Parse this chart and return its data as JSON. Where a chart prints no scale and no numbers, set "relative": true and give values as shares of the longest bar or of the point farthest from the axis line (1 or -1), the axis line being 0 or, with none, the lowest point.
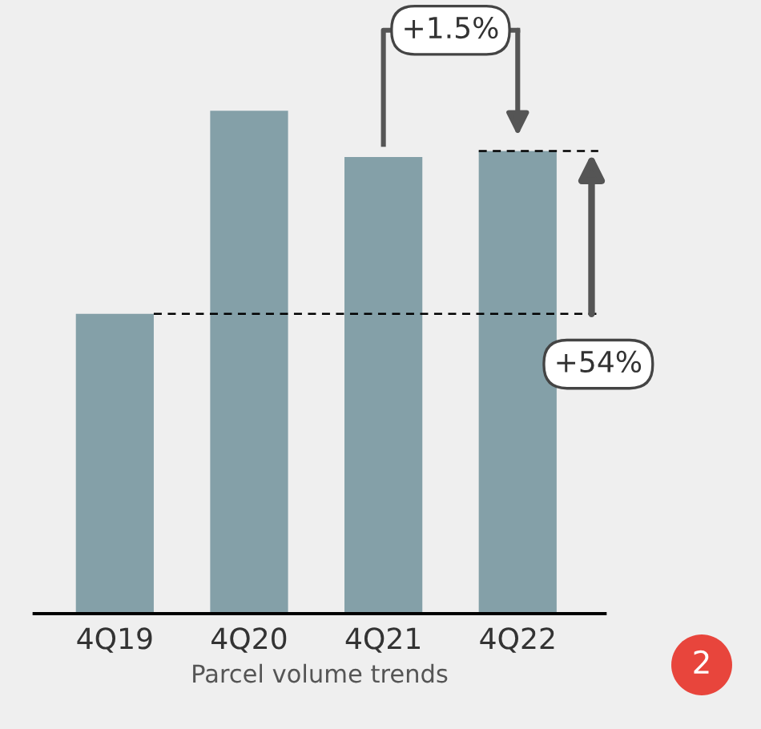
{
  "chart_data": {
    "type": "bar",
    "relative": true,
    "categories": [
      "4Q19",
      "4Q20",
      "4Q21",
      "4Q22"
    ],
    "values": [
      0.596,
      1.0,
      0.908,
      0.92
    ],
    "color": "#84a0a8",
    "xlabel": "Parcel volume trends",
    "ref_lines": [
      {
        "axis": "y",
        "value": 0.596,
        "line_style": "dashed",
        "color": "#000000"
      },
      {
        "axis": "y",
        "value": 0.92,
        "line_style": "dashed",
        "color": "#000000"
      }
    ],
    "annotations": [
      "+1.5%",
      "+54%",
      "2"
    ]
  }
}
